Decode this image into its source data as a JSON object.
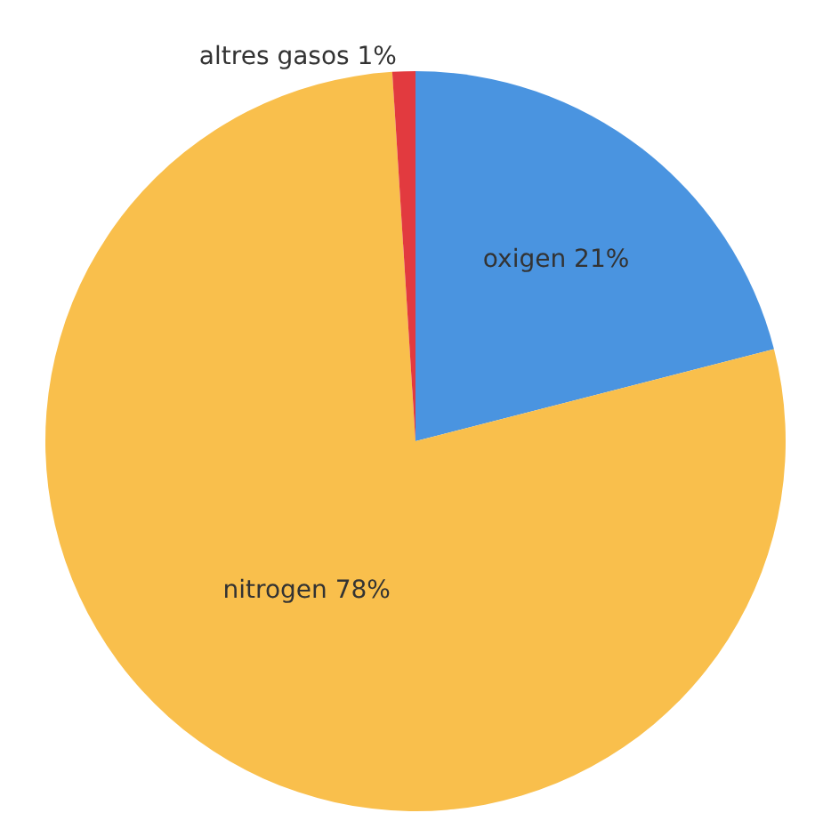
{
  "chart_data": {
    "type": "pie",
    "categories": [
      "oxigen",
      "nitrogen",
      "altres gasos"
    ],
    "values": [
      21,
      78,
      1
    ],
    "value_labels": [
      "21%",
      "78%",
      "1%"
    ],
    "colors": [
      "#4a94e0",
      "#f9bf4c",
      "#e23a3f"
    ],
    "legend": false
  }
}
